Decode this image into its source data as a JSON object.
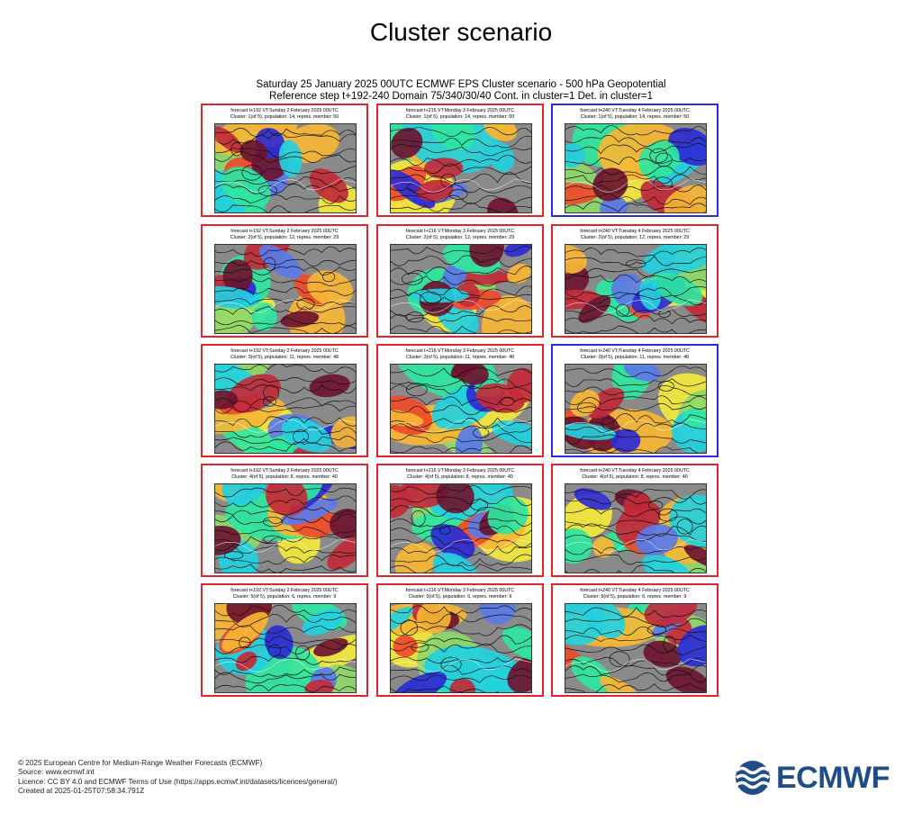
{
  "page_title": "Cluster scenario",
  "subtitle_line1": "Saturday 25 January 2025 00UTC ECMWF EPS Cluster scenario - 500 hPa Geopotential",
  "subtitle_line2": "Reference step t+192-240 Domain 75/340/30/40 Cont. in cluster=1 Det. in cluster=1",
  "columns": [
    {
      "line": "forecast t+192 VT:Sunday 2 February 2025 00UTC"
    },
    {
      "line": "forecast t+216 VT:Monday 3 February 2025 00UTC"
    },
    {
      "line": "forecast t+240 VT:Tuesday 4 February 2025 00UTC"
    }
  ],
  "clusters": [
    {
      "line": "Cluster: 1(of 5), population: 14, repres. member: 50",
      "frames": [
        "red",
        "red",
        "blue"
      ]
    },
    {
      "line": "Cluster: 2(of 5), population: 12, repres. member: 29",
      "frames": [
        "red",
        "red",
        "red"
      ]
    },
    {
      "line": "Cluster: 3(of 5), population: 11, repres. member: 48",
      "frames": [
        "red",
        "red",
        "blue"
      ]
    },
    {
      "line": "Cluster: 4(of 5), population: 8, repres. member: 40",
      "frames": [
        "red",
        "red",
        "red"
      ]
    },
    {
      "line": "Cluster: 5(of 5), population: 6, repres. member: 9",
      "frames": [
        "red",
        "red",
        "red"
      ]
    }
  ],
  "colors": {
    "frame_red": "#e8202a",
    "frame_blue": "#2a2ae0",
    "anomaly_scale": [
      "#2b2bd6",
      "#5a7ae8",
      "#22d0e0",
      "#2ee6a0",
      "#8ed86a",
      "#f3e83a",
      "#f7b634",
      "#ee4a2a",
      "#c22a3a",
      "#6e1430"
    ],
    "land": "#8a8a8a",
    "logo": "#1f4e86"
  },
  "footer": {
    "copyright": "© 2025 European Centre for Medium-Range Weather Forecasts (ECMWF)",
    "source": "Source: www.ecmwf.int",
    "licence": "Licence: CC BY 4.0 and ECMWF Terms of Use (https://apps.ecmwf.int/datasets/licences/general/)",
    "created": "Created at 2025-01-25T07:58:34.791Z"
  },
  "logo": {
    "text": "ECMWF",
    "icon": "ecmwf-waves-icon"
  }
}
